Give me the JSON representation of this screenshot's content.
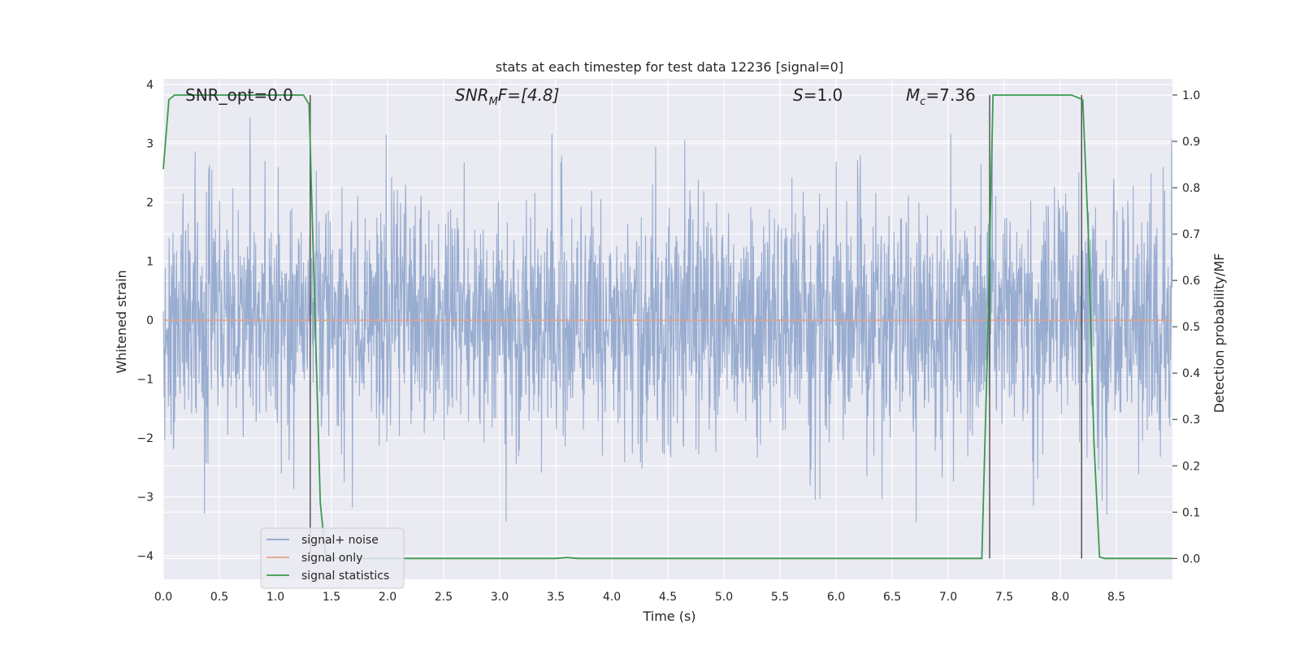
{
  "chart_data": {
    "type": "line",
    "title": "stats at each timestep for test data 12236 [signal=0]",
    "xlabel": "Time (s)",
    "ylabel": "Whitened strain",
    "y2label": "Detection probability/MF",
    "xlim": [
      0.0,
      9.0
    ],
    "ylim": [
      -4.4,
      4.1
    ],
    "y2lim": [
      -0.045,
      1.035
    ],
    "xticks": [
      0.0,
      0.5,
      1.0,
      1.5,
      2.0,
      2.5,
      3.0,
      3.5,
      4.0,
      4.5,
      5.0,
      5.5,
      6.0,
      6.5,
      7.0,
      7.5,
      8.0,
      8.5
    ],
    "xtick_labels": [
      "0.0",
      "0.5",
      "1.0",
      "1.5",
      "2.0",
      "2.5",
      "3.0",
      "3.5",
      "4.0",
      "4.5",
      "5.0",
      "5.5",
      "6.0",
      "6.5",
      "7.0",
      "7.5",
      "8.0",
      "8.5"
    ],
    "yticks": [
      -4,
      -3,
      -2,
      -1,
      0,
      1,
      2,
      3,
      4
    ],
    "ytick_labels": [
      "−4",
      "−3",
      "−2",
      "−1",
      "0",
      "1",
      "2",
      "3",
      "4"
    ],
    "y2ticks": [
      0.0,
      0.1,
      0.2,
      0.3,
      0.4,
      0.5,
      0.6,
      0.7,
      0.8,
      0.9,
      1.0
    ],
    "y2tick_labels": [
      "0.0",
      "0.1",
      "0.2",
      "0.3",
      "0.4",
      "0.5",
      "0.6",
      "0.7",
      "0.8",
      "0.9",
      "1.0"
    ],
    "grid": true,
    "legend_position": "lower-left",
    "annotations": {
      "snr_opt": "SNR_opt=0.0",
      "snr_mf_base": "SNR",
      "snr_mf_sub": "M",
      "snr_mf_rest": "F=[4.8]",
      "s_base": "S",
      "s_rest": "=1.0",
      "mc_base": "M",
      "mc_sub": "c",
      "mc_rest": "=7.36"
    },
    "series": [
      {
        "name": "signal+ noise",
        "color": "#8fa5cc",
        "axis": "left",
        "description_envelope": "noise fluctuating roughly between -2.5 and 3 with spikes to about ±3.7",
        "duration": 9.0
      },
      {
        "name": "signal only",
        "color": "#e3a287",
        "axis": "left",
        "x": [
          0.0,
          9.0
        ],
        "y": [
          0.0,
          0.0
        ]
      },
      {
        "name": "signal statistics",
        "color": "#3a9a4e",
        "axis": "right",
        "x": [
          0.0,
          0.05,
          0.1,
          0.2,
          0.5,
          0.8,
          1.0,
          1.25,
          1.3,
          1.35,
          1.4,
          1.45,
          1.5,
          2.0,
          3.0,
          3.5,
          3.6,
          3.7,
          4.0,
          5.0,
          6.0,
          7.0,
          7.3,
          7.35,
          7.4,
          7.45,
          7.6,
          8.0,
          8.1,
          8.2,
          8.25,
          8.3,
          8.35,
          8.4,
          9.0
        ],
        "y": [
          0.84,
          0.99,
          1.0,
          1.0,
          1.0,
          1.0,
          1.0,
          1.0,
          0.98,
          0.55,
          0.12,
          0.0,
          0.0,
          0.0,
          0.0,
          0.0,
          0.002,
          0.0,
          0.0,
          0.0,
          0.0,
          0.0,
          0.0,
          0.45,
          1.0,
          1.0,
          1.0,
          1.0,
          1.0,
          0.99,
          0.7,
          0.25,
          0.003,
          0.0,
          0.0
        ]
      }
    ],
    "vertical_markers": [
      {
        "x": 1.31,
        "y2_from": 0.0,
        "y2_to": 1.0,
        "color": "#555555"
      },
      {
        "x": 7.37,
        "y2_from": 0.0,
        "y2_to": 1.0,
        "color": "#555555"
      },
      {
        "x": 8.19,
        "y2_from": 0.0,
        "y2_to": 1.0,
        "color": "#555555"
      }
    ]
  },
  "colors": {
    "plot_bg": "#eaeaf2",
    "grid": "#ffffff",
    "text": "#262626"
  }
}
